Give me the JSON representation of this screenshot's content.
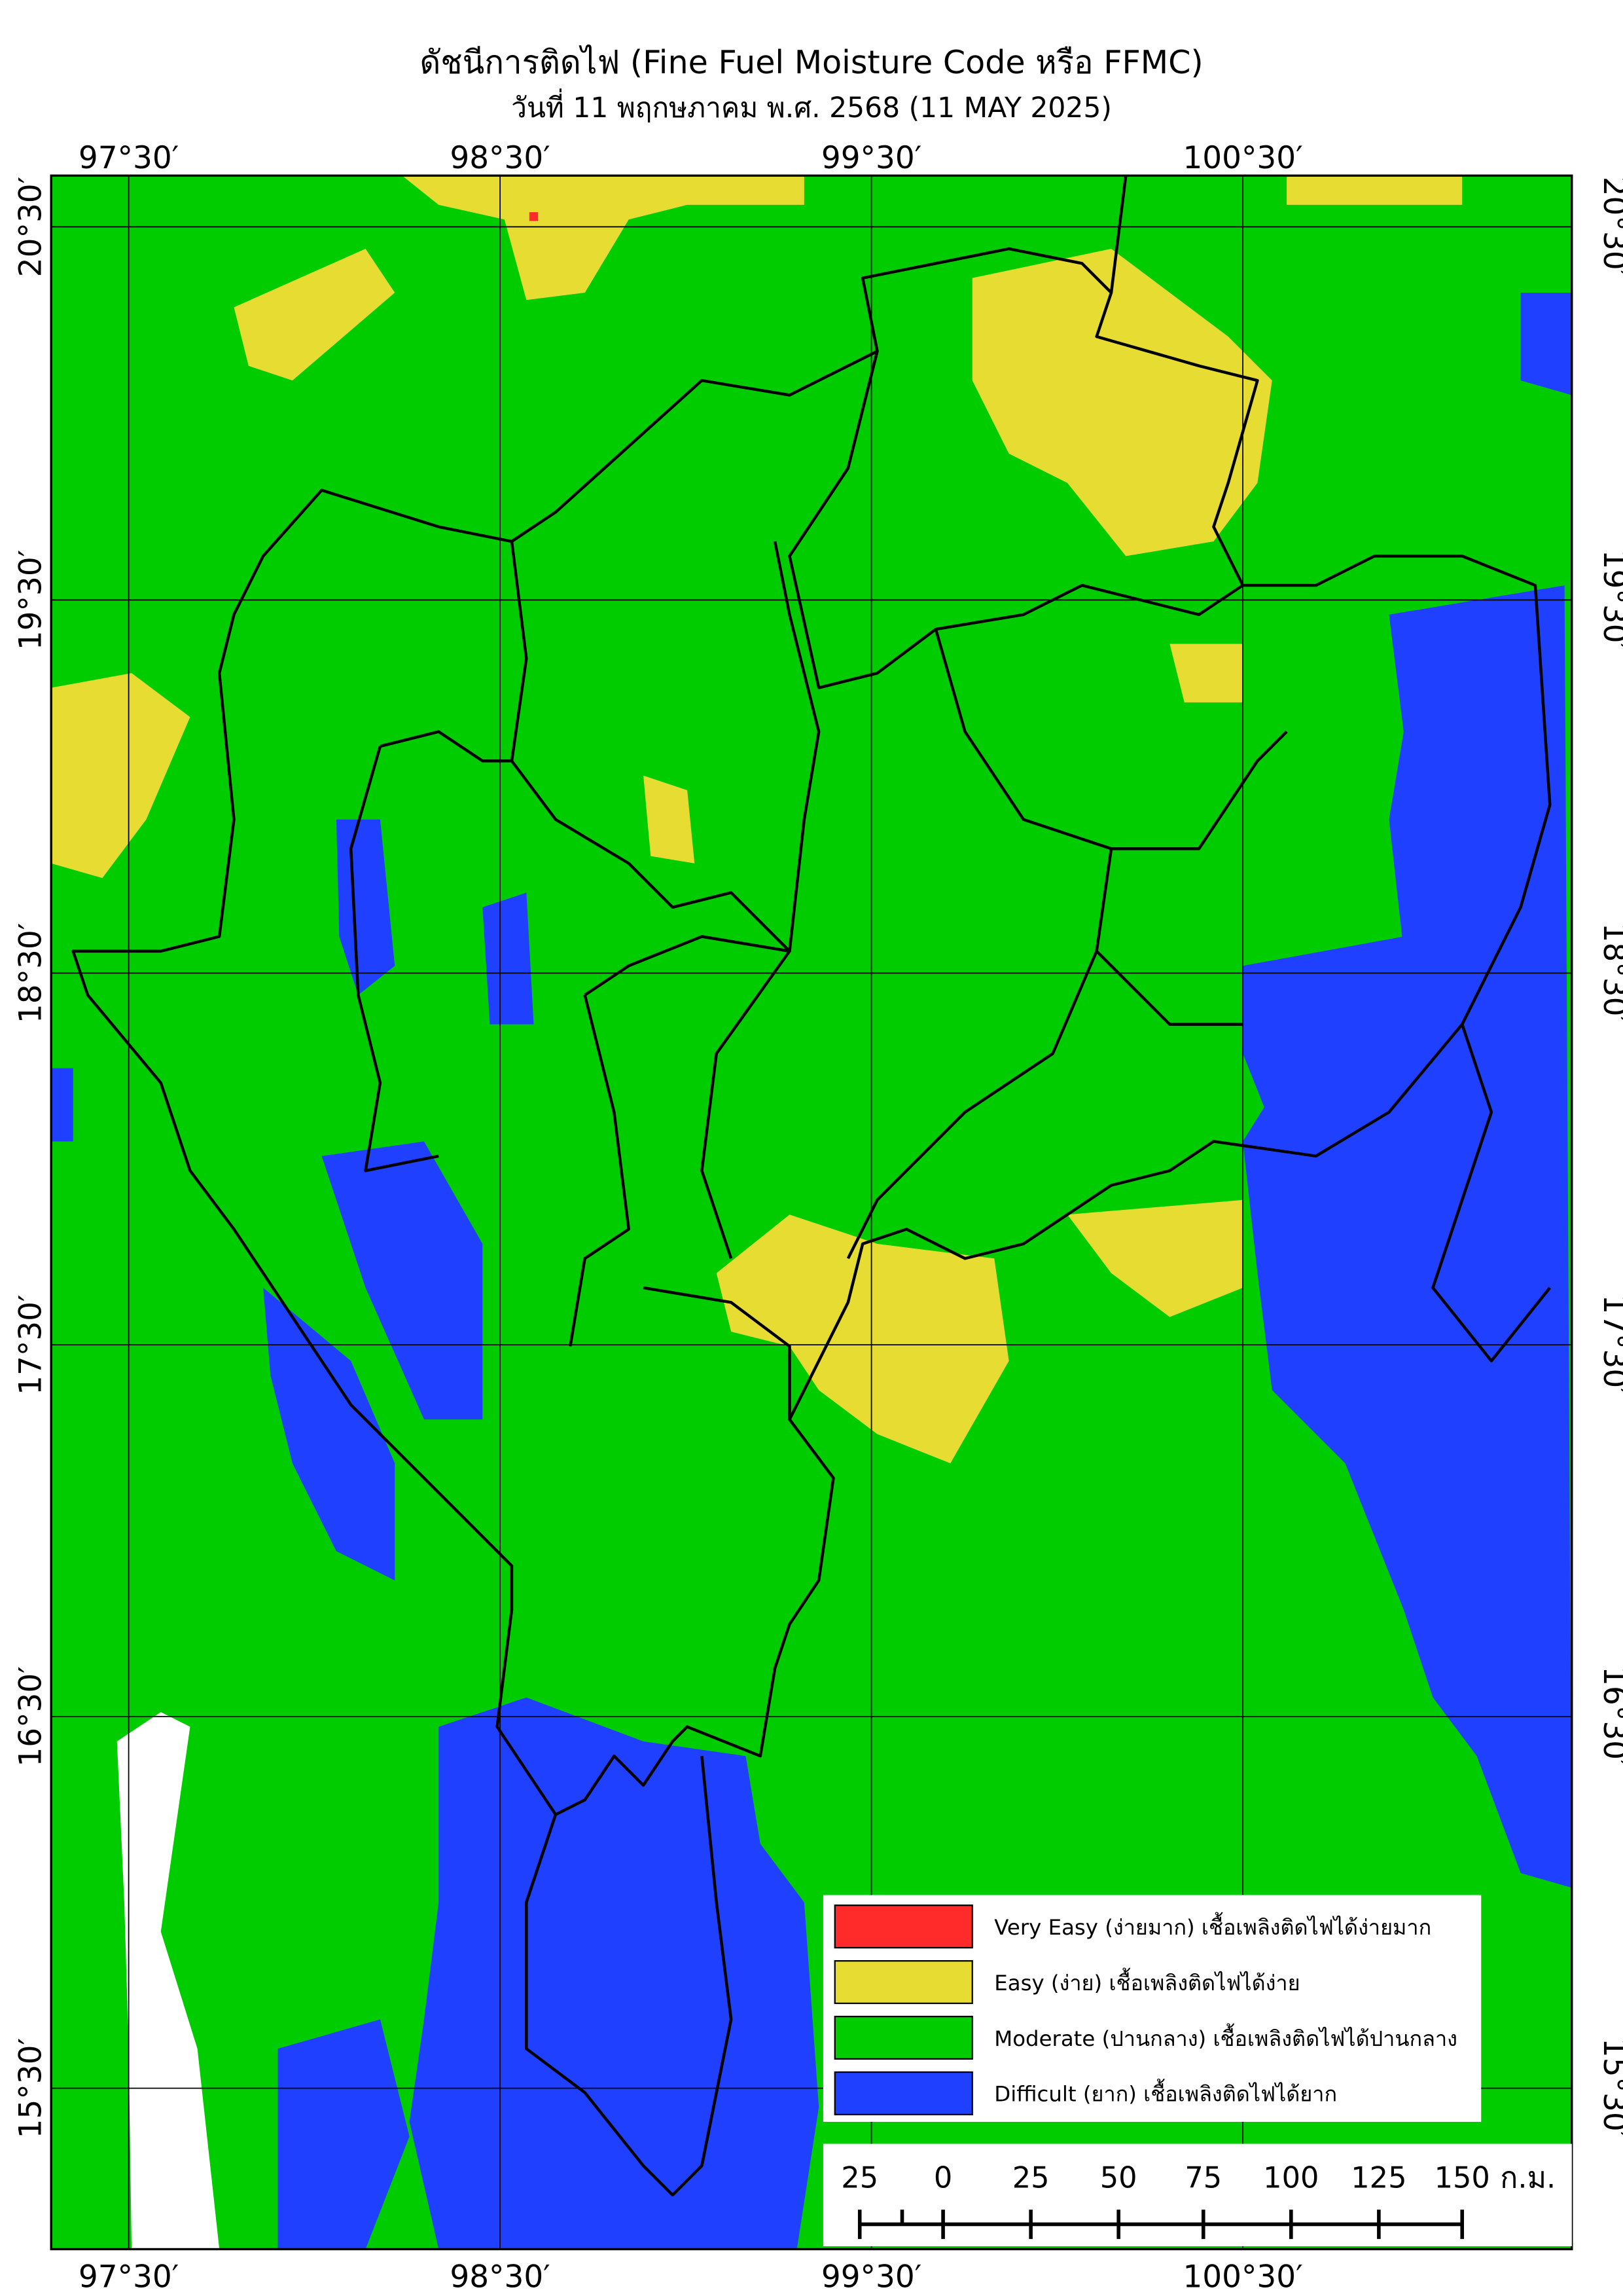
{
  "title": "ดัชนีการติดไฟ (Fine Fuel Moisture Code หรือ FFMC)",
  "subtitle": "วันที่ 11 พฤกษภาคม พ.ศ. 2568 (11 MAY 2025)",
  "lon_labels": [
    "97°30′",
    "98°30′",
    "99°30′",
    "100°30′"
  ],
  "lat_labels": [
    "20°30′",
    "19°30′",
    "18°30′",
    "17°30′",
    "16°30′",
    "15°30′"
  ],
  "legend": [
    {
      "label": "Very Easy (ง่ายมาก) เชื้อเพลิงติดไฟได้ง่ายมาก",
      "color": "#ff2a2a"
    },
    {
      "label": "Easy (ง่าย) เชื้อเพลิงติดไฟได้ง่าย",
      "color": "#e6dc32"
    },
    {
      "label": "Moderate (ปานกลาง) เชื้อเพลิงติดไฟได้ปานกลาง",
      "color": "#00cc00"
    },
    {
      "label": "Difficult (ยาก) เชื้อเพลิงติดไฟได้ยาก",
      "color": "#2040ff"
    }
  ],
  "scale_labels": [
    "25",
    "0",
    "25",
    "50",
    "75",
    "100",
    "125",
    "150"
  ],
  "scale_unit": "ก.ม."
}
